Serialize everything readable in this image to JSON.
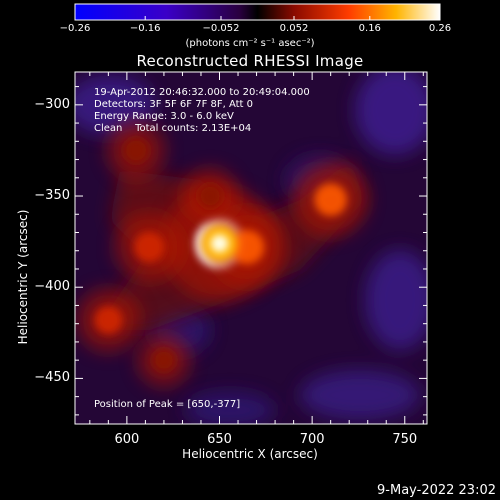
{
  "chart_data": {
    "type": "heatmap",
    "title": "Reconstructed RHESSI Image",
    "xlabel": "Heliocentric X (arcsec)",
    "ylabel": "Heliocentric Y (arcsec)",
    "xlim": [
      572,
      762
    ],
    "ylim": [
      -475,
      -282
    ],
    "x_ticks": [
      600,
      650,
      700,
      750
    ],
    "y_ticks": [
      -300,
      -350,
      -400,
      -450
    ],
    "colorbar": {
      "label": "(photons cm⁻² s⁻¹ asec⁻²)",
      "range": [
        -0.26,
        0.26
      ],
      "ticks": [
        "-0.26",
        "-0.16",
        "-0.052",
        "0.052",
        "0.16",
        "0.26"
      ]
    },
    "annotations": [
      "19-Apr-2012 20:46:32.000 to 20:49:04.000",
      "Detectors: 3F 5F 6F 7F 8F, Att 0",
      "Energy Range: 3.0 - 6.0 keV",
      "Clean    Total counts: 2.13E+04"
    ],
    "peak_label": "Position of Peak = [650,-377]",
    "sources": [
      {
        "x": 650,
        "y": -376,
        "value": 0.26
      },
      {
        "x": 665,
        "y": -378,
        "value": 0.12
      },
      {
        "x": 710,
        "y": -352,
        "value": 0.11
      },
      {
        "x": 612,
        "y": -378,
        "value": 0.09
      },
      {
        "x": 590,
        "y": -418,
        "value": 0.07
      },
      {
        "x": 605,
        "y": -325,
        "value": 0.05
      },
      {
        "x": 645,
        "y": -350,
        "value": 0.04
      },
      {
        "x": 620,
        "y": -440,
        "value": 0.03
      }
    ]
  },
  "footer": {
    "date": "9-May-2022 23:02"
  }
}
